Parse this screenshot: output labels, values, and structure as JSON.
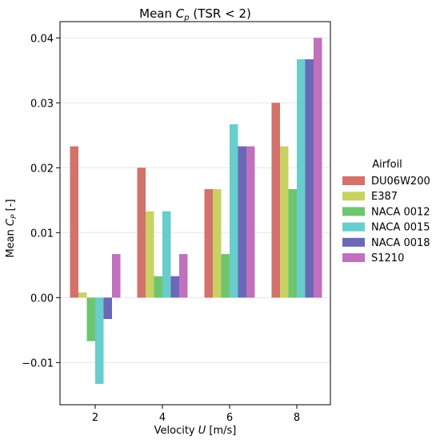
{
  "chart_data": {
    "type": "bar",
    "title_prefix": "Mean ",
    "title_var": "C",
    "title_sub": "p",
    "title_suffix": " (TSR < 2)",
    "xlabel_prefix": "Velocity ",
    "xlabel_var": "U",
    "xlabel_suffix": " [m/s]",
    "ylabel_prefix": "Mean ",
    "ylabel_var": "C",
    "ylabel_sub": "P",
    "ylabel_suffix": " [-]",
    "categories": [
      "2",
      "4",
      "6",
      "8"
    ],
    "ylim": [
      -0.0165,
      0.0425
    ],
    "yticks": [
      -0.01,
      0.0,
      0.01,
      0.02,
      0.03,
      0.04
    ],
    "ytick_labels": [
      "−0.01",
      "0.00",
      "0.01",
      "0.02",
      "0.03",
      "0.04"
    ],
    "grid": "horizontal",
    "legend_title": "Airfoil",
    "legend_position": "right",
    "series": [
      {
        "name": "DU06W200",
        "color": "#d3716b",
        "values": [
          0.0233,
          0.02,
          0.0167,
          0.03
        ]
      },
      {
        "name": "E387",
        "color": "#c8d264",
        "values": [
          0.0008,
          0.0133,
          0.0167,
          0.0233
        ]
      },
      {
        "name": "NACA 0012",
        "color": "#6dc56d",
        "values": [
          -0.0067,
          0.0033,
          0.0067,
          0.0167
        ]
      },
      {
        "name": "NACA 0015",
        "color": "#67cdcd",
        "values": [
          -0.0133,
          0.0133,
          0.0267,
          0.0367
        ]
      },
      {
        "name": "NACA 0018",
        "color": "#6b68b7",
        "values": [
          -0.0033,
          0.0033,
          0.0233,
          0.0367
        ]
      },
      {
        "name": "S1210",
        "color": "#c170be",
        "values": [
          0.0067,
          0.0067,
          0.0233,
          0.04
        ]
      }
    ]
  }
}
